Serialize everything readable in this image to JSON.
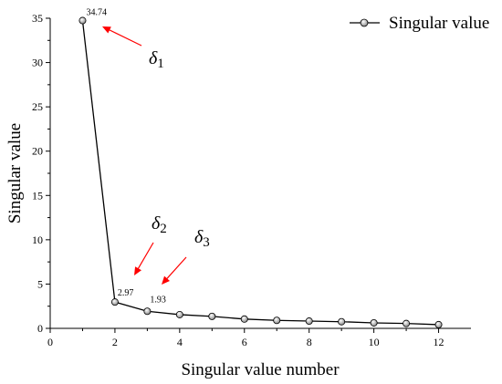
{
  "chart_data": {
    "type": "line",
    "title": "",
    "xlabel": "Singular value number",
    "ylabel": "Singular value",
    "xlim": [
      0,
      13
    ],
    "ylim": [
      0,
      35
    ],
    "x_ticks": [
      0,
      2,
      4,
      6,
      8,
      10,
      12
    ],
    "x_tick_labels": [
      "0",
      "2",
      "4",
      "6",
      "8",
      "10",
      "12"
    ],
    "y_ticks": [
      0,
      5,
      10,
      15,
      20,
      25,
      30,
      35
    ],
    "y_tick_labels": [
      "0",
      "5",
      "10",
      "15",
      "20",
      "25",
      "30",
      "35"
    ],
    "grid": false,
    "legend": {
      "position": "top-right",
      "entries": [
        "Singular value"
      ]
    },
    "series": [
      {
        "name": "Singular value",
        "x": [
          1,
          2,
          3,
          4,
          5,
          6,
          7,
          8,
          9,
          10,
          11,
          12
        ],
        "y": [
          34.74,
          2.97,
          1.93,
          1.55,
          1.35,
          1.05,
          0.9,
          0.82,
          0.75,
          0.62,
          0.55,
          0.42
        ]
      }
    ],
    "data_labels": [
      {
        "x": 1,
        "y": 34.74,
        "text": "34.74"
      },
      {
        "x": 2,
        "y": 2.97,
        "text": "2.97"
      },
      {
        "x": 3,
        "y": 1.93,
        "text": "1.93"
      }
    ],
    "annotations": [
      {
        "symbol": "δ",
        "subscript": "1",
        "points_to_x": 1,
        "points_to_y": 34.74,
        "arrow_color": "#ff0000"
      },
      {
        "symbol": "δ",
        "subscript": "2",
        "points_to_x": 2,
        "points_to_y": 2.97,
        "arrow_color": "#ff0000"
      },
      {
        "symbol": "δ",
        "subscript": "3",
        "points_to_x": 3,
        "points_to_y": 1.93,
        "arrow_color": "#ff0000"
      }
    ],
    "colors": {
      "line": "#000000",
      "marker": "#d8d8d8",
      "arrow": "#ff0000"
    }
  }
}
